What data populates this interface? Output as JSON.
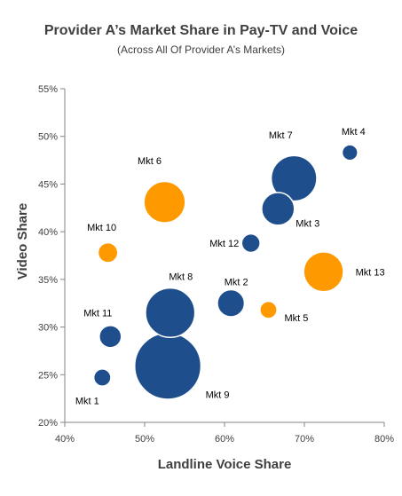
{
  "chart_data": {
    "type": "bubble",
    "title": "Provider A’s Market Share in Pay-TV and Voice",
    "subtitle": "(Across All Of Provider A’s Markets)",
    "xlabel": "Landline Voice Share",
    "ylabel": "Video Share",
    "xlim": [
      0.4,
      0.8
    ],
    "ylim": [
      0.2,
      0.55
    ],
    "xticks": [
      "40%",
      "50%",
      "60%",
      "70%",
      "80%"
    ],
    "yticks": [
      "20%",
      "25%",
      "30%",
      "35%",
      "40%",
      "45%",
      "50%",
      "55%"
    ],
    "colors": {
      "navy": "#1f4e8c",
      "orange": "#ff9900",
      "label": "#000000",
      "axis": "#404040"
    },
    "points": [
      {
        "name": "Mkt 1",
        "x": 0.447,
        "y": 0.247,
        "size": 0.012,
        "color": "navy"
      },
      {
        "name": "Mkt 2",
        "x": 0.608,
        "y": 0.325,
        "size": 0.03,
        "color": "navy"
      },
      {
        "name": "Mkt 3",
        "x": 0.667,
        "y": 0.424,
        "size": 0.044,
        "color": "navy"
      },
      {
        "name": "Mkt 4",
        "x": 0.757,
        "y": 0.483,
        "size": 0.01,
        "color": "navy"
      },
      {
        "name": "Mkt 5",
        "x": 0.655,
        "y": 0.318,
        "size": 0.012,
        "color": "orange"
      },
      {
        "name": "Mkt 6",
        "x": 0.525,
        "y": 0.431,
        "size": 0.07,
        "color": "orange"
      },
      {
        "name": "Mkt 7",
        "x": 0.687,
        "y": 0.456,
        "size": 0.085,
        "color": "navy"
      },
      {
        "name": "Mkt 8",
        "x": 0.532,
        "y": 0.315,
        "size": 0.1,
        "color": "navy"
      },
      {
        "name": "Mkt 9",
        "x": 0.529,
        "y": 0.259,
        "size": 0.18,
        "color": "navy"
      },
      {
        "name": "Mkt 10",
        "x": 0.454,
        "y": 0.378,
        "size": 0.016,
        "color": "orange"
      },
      {
        "name": "Mkt 11",
        "x": 0.457,
        "y": 0.29,
        "size": 0.02,
        "color": "navy"
      },
      {
        "name": "Mkt 12",
        "x": 0.633,
        "y": 0.388,
        "size": 0.014,
        "color": "navy"
      },
      {
        "name": "Mkt 13",
        "x": 0.724,
        "y": 0.358,
        "size": 0.065,
        "color": "orange"
      }
    ]
  }
}
